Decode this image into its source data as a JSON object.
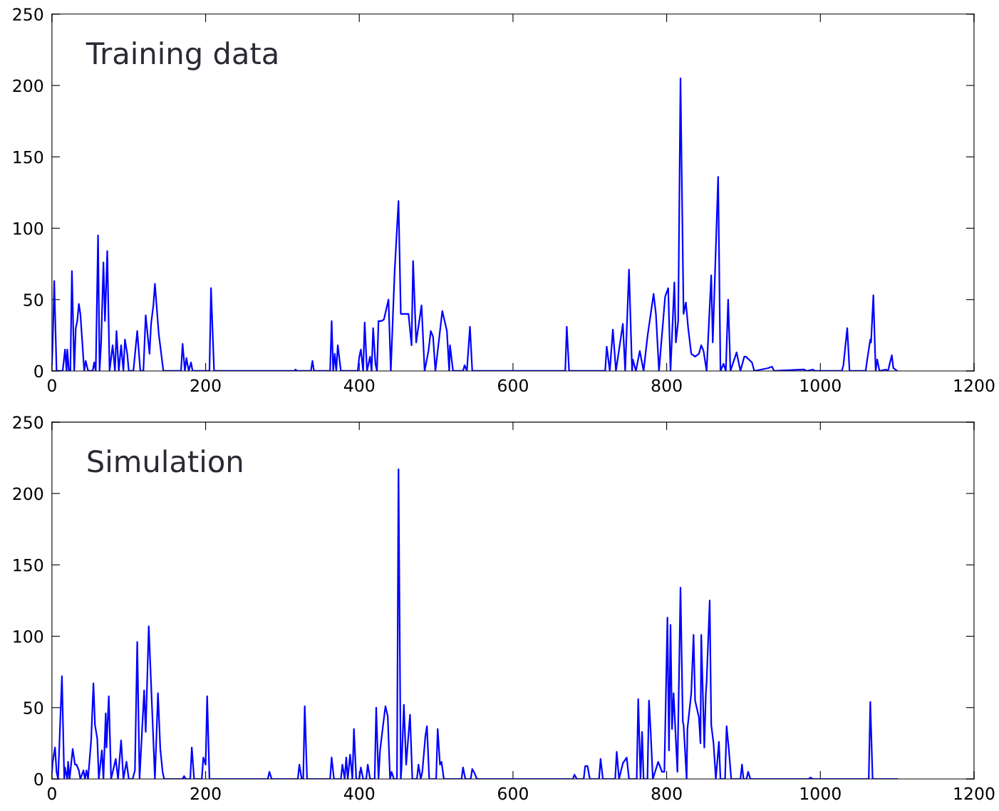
{
  "chart_data": [
    {
      "type": "line",
      "title": "Training data",
      "xlim": [
        0,
        1200
      ],
      "ylim": [
        0,
        250
      ],
      "xticks": [
        0,
        200,
        400,
        600,
        800,
        1000,
        1200
      ],
      "yticks": [
        0,
        50,
        100,
        150,
        200,
        250
      ],
      "grid": false,
      "legend": false,
      "marker": "none",
      "line_style": "solid",
      "series": [
        {
          "color": "#0000ff",
          "x": [
            0,
            1,
            3,
            6,
            14,
            17,
            19,
            20,
            22,
            24,
            26,
            29,
            31,
            33,
            35,
            37,
            42,
            44,
            47,
            53,
            55,
            57,
            60,
            62,
            64,
            67,
            69,
            72,
            75,
            79,
            82,
            84,
            87,
            90,
            93,
            95,
            98,
            100,
            106,
            111,
            115,
            119,
            122,
            127,
            129,
            132,
            134,
            139,
            145,
            168,
            170,
            173,
            175,
            178,
            181,
            183,
            205,
            207,
            211,
            315,
            317,
            319,
            337,
            339,
            341,
            362,
            364,
            366,
            368,
            370,
            372,
            376,
            398,
            400,
            402,
            405,
            407,
            410,
            414,
            416,
            418,
            421,
            423,
            425,
            429,
            432,
            438,
            441,
            446,
            451,
            454,
            459,
            464,
            468,
            470,
            474,
            481,
            485,
            490,
            493,
            496,
            499,
            508,
            511,
            514,
            517,
            518,
            522,
            535,
            537,
            540,
            544,
            547,
            668,
            670,
            673,
            720,
            722,
            726,
            730,
            734,
            743,
            746,
            751,
            755,
            756,
            760,
            765,
            770,
            775,
            783,
            786,
            790,
            798,
            802,
            805,
            810,
            812,
            815,
            818,
            822,
            825,
            828,
            832,
            837,
            842,
            845,
            848,
            852,
            858,
            860,
            867,
            870,
            874,
            877,
            880,
            883,
            891,
            896,
            901,
            903,
            911,
            914,
            932,
            937,
            940,
            979,
            982,
            990,
            993,
            1028,
            1030,
            1035,
            1038,
            1059,
            1061,
            1065,
            1066,
            1069,
            1072,
            1074,
            1077,
            1085,
            1088,
            1093,
            1095,
            1100
          ],
          "values": [
            5,
            20,
            63,
            0,
            0,
            15,
            0,
            15,
            0,
            0,
            70,
            0,
            30,
            35,
            47,
            40,
            0,
            7,
            0,
            0,
            6,
            0,
            95,
            0,
            20,
            76,
            35,
            84,
            0,
            18,
            0,
            28,
            0,
            18,
            0,
            22,
            12,
            0,
            0,
            28,
            0,
            0,
            39,
            12,
            33,
            46,
            61,
            26,
            0,
            0,
            19,
            0,
            9,
            0,
            6,
            0,
            0,
            58,
            0,
            0,
            1,
            0,
            0,
            7,
            0,
            0,
            35,
            0,
            12,
            0,
            18,
            0,
            0,
            10,
            15,
            0,
            34,
            0,
            10,
            0,
            30,
            5,
            0,
            35,
            35,
            36,
            50,
            0,
            70,
            119,
            40,
            40,
            40,
            18,
            77,
            20,
            46,
            0,
            14,
            28,
            24,
            0,
            42,
            35,
            28,
            0,
            18,
            0,
            0,
            4,
            0,
            31,
            0,
            0,
            31,
            0,
            0,
            17,
            0,
            29,
            0,
            33,
            0,
            71,
            0,
            8,
            0,
            14,
            0,
            24,
            54,
            40,
            0,
            52,
            58,
            0,
            62,
            20,
            35,
            205,
            40,
            48,
            30,
            12,
            10,
            12,
            18,
            14,
            0,
            67,
            20,
            136,
            0,
            5,
            0,
            50,
            0,
            13,
            0,
            10,
            10,
            6,
            0,
            2,
            3,
            0,
            1,
            0,
            1,
            0,
            0,
            4,
            30,
            0,
            0,
            8,
            22,
            20,
            53,
            0,
            8,
            0,
            1,
            0,
            11,
            2,
            0
          ]
        }
      ]
    },
    {
      "type": "line",
      "title": "Simulation",
      "xlim": [
        0,
        1200
      ],
      "ylim": [
        0,
        250
      ],
      "xticks": [
        0,
        200,
        400,
        600,
        800,
        1000,
        1200
      ],
      "yticks": [
        0,
        50,
        100,
        150,
        200,
        250
      ],
      "grid": false,
      "legend": false,
      "marker": "none",
      "line_style": "solid",
      "series": [
        {
          "color": "#0000ff",
          "x": [
            0,
            1,
            4,
            6,
            8,
            13,
            16,
            17,
            20,
            21,
            23,
            27,
            30,
            32,
            35,
            37,
            41,
            43,
            45,
            47,
            51,
            54,
            56,
            59,
            61,
            65,
            67,
            70,
            71,
            74,
            77,
            83,
            86,
            90,
            93,
            97,
            100,
            105,
            108,
            111,
            114,
            120,
            122,
            126,
            131,
            134,
            138,
            141,
            144,
            146,
            170,
            172,
            174,
            180,
            182,
            185,
            195,
            197,
            200,
            202,
            205,
            281,
            283,
            286,
            320,
            322,
            325,
            327,
            329,
            332,
            362,
            364,
            367,
            376,
            378,
            381,
            383,
            385,
            388,
            391,
            393,
            396,
            400,
            402,
            405,
            409,
            411,
            414,
            420,
            422,
            425,
            427,
            431,
            434,
            437,
            440,
            442,
            445,
            449,
            451,
            454,
            455,
            458,
            461,
            466,
            469,
            475,
            477,
            480,
            482,
            486,
            488,
            491,
            500,
            502,
            505,
            507,
            510,
            533,
            535,
            538,
            545,
            547,
            550,
            553,
            678,
            680,
            683,
            692,
            694,
            697,
            700,
            712,
            714,
            717,
            733,
            735,
            738,
            743,
            748,
            751,
            761,
            763,
            766,
            768,
            770,
            775,
            777,
            779,
            782,
            789,
            794,
            797,
            801,
            803,
            805,
            807,
            809,
            814,
            818,
            821,
            822,
            826,
            827,
            832,
            835,
            837,
            842,
            844,
            845,
            849,
            851,
            852,
            856,
            858,
            861,
            864,
            868,
            870,
            876,
            878,
            881,
            884,
            896,
            898,
            900,
            904,
            906,
            909,
            985,
            987,
            990,
            1063,
            1065,
            1068,
            1100
          ],
          "values": [
            5,
            12,
            22,
            5,
            0,
            72,
            0,
            8,
            0,
            12,
            0,
            21,
            10,
            10,
            6,
            0,
            6,
            0,
            6,
            0,
            27,
            67,
            38,
            28,
            0,
            20,
            0,
            46,
            22,
            58,
            0,
            14,
            0,
            27,
            0,
            12,
            0,
            0,
            6,
            96,
            0,
            62,
            33,
            107,
            40,
            0,
            60,
            21,
            5,
            0,
            0,
            2,
            0,
            0,
            22,
            0,
            0,
            15,
            10,
            58,
            0,
            0,
            5,
            0,
            0,
            10,
            0,
            0,
            51,
            0,
            0,
            15,
            0,
            0,
            10,
            0,
            15,
            0,
            17,
            0,
            35,
            0,
            0,
            8,
            0,
            0,
            10,
            0,
            0,
            50,
            0,
            20,
            38,
            51,
            44,
            0,
            5,
            0,
            0,
            217,
            0,
            8,
            52,
            10,
            45,
            0,
            0,
            10,
            0,
            5,
            30,
            37,
            0,
            0,
            35,
            10,
            12,
            0,
            0,
            8,
            0,
            0,
            7,
            4,
            0,
            0,
            3,
            0,
            0,
            9,
            9,
            0,
            0,
            14,
            0,
            0,
            19,
            0,
            11,
            15,
            0,
            0,
            56,
            0,
            33,
            0,
            0,
            55,
            35,
            0,
            12,
            5,
            5,
            113,
            20,
            108,
            35,
            60,
            5,
            134,
            40,
            38,
            0,
            35,
            60,
            101,
            55,
            43,
            25,
            101,
            22,
            60,
            68,
            125,
            38,
            25,
            0,
            26,
            0,
            0,
            37,
            20,
            0,
            0,
            10,
            0,
            0,
            5,
            0,
            0,
            1,
            0,
            0,
            54,
            0,
            0
          ]
        }
      ]
    }
  ]
}
